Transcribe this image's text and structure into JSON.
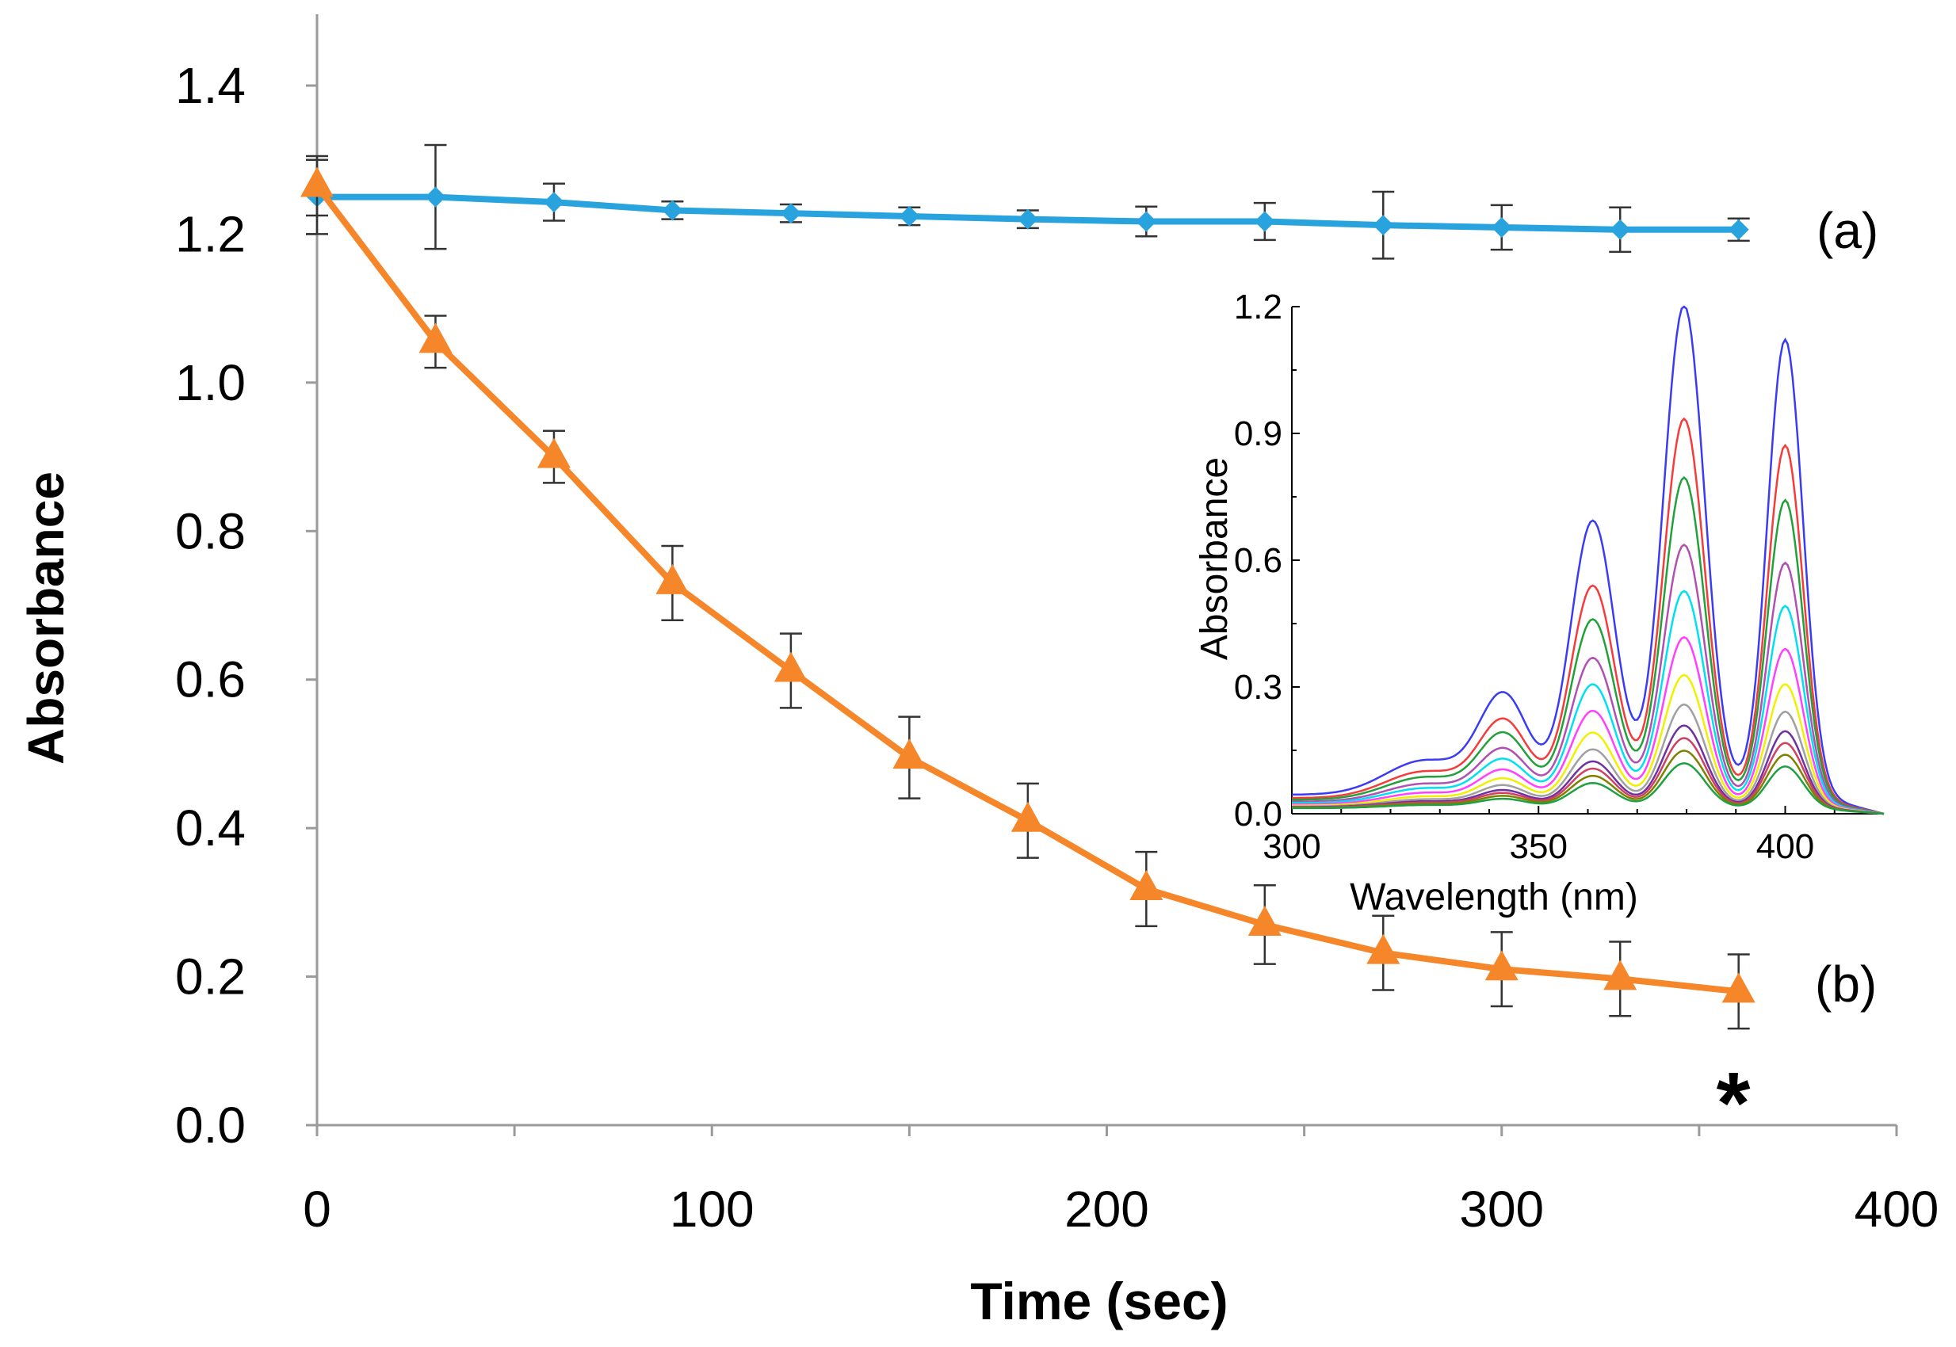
{
  "chart_data": [
    {
      "type": "line",
      "xlabel": "Time (sec)",
      "ylabel": "Absorbance",
      "xlim": [
        0,
        400
      ],
      "ylim": [
        0,
        1.4
      ],
      "x_ticks": [
        "0",
        "100",
        "200",
        "300",
        "400"
      ],
      "y_ticks": [
        "0.0",
        "0.2",
        "0.4",
        "0.6",
        "0.8",
        "1.0",
        "1.2",
        "1.4"
      ],
      "x": [
        0,
        30,
        60,
        90,
        120,
        150,
        180,
        210,
        240,
        270,
        300,
        330,
        360
      ],
      "series": [
        {
          "label": "(a)",
          "color": "#29a3dd",
          "marker": "diamond",
          "values": [
            1.25,
            1.25,
            1.243,
            1.232,
            1.228,
            1.224,
            1.22,
            1.217,
            1.217,
            1.212,
            1.209,
            1.206,
            1.206
          ],
          "errors": [
            0.05,
            0.07,
            0.025,
            0.012,
            0.012,
            0.012,
            0.012,
            0.02,
            0.025,
            0.045,
            0.03,
            0.03,
            0.015
          ]
        },
        {
          "label": "(b)",
          "color": "#f5862a",
          "marker": "triangle",
          "values": [
            1.265,
            1.055,
            0.9,
            0.73,
            0.612,
            0.495,
            0.41,
            0.318,
            0.27,
            0.232,
            0.21,
            0.197,
            0.18
          ],
          "errors": [
            0.04,
            0.035,
            0.035,
            0.05,
            0.05,
            0.055,
            0.05,
            0.05,
            0.053,
            0.05,
            0.05,
            0.05,
            0.05
          ]
        }
      ],
      "annotation": "*",
      "grid": false
    },
    {
      "type": "line",
      "role": "inset",
      "xlabel": "Wavelength (nm)",
      "ylabel": "Absorbance",
      "xlim": [
        300,
        420
      ],
      "ylim": [
        0,
        1.2
      ],
      "x_ticks": [
        "300",
        "350",
        "400"
      ],
      "y_ticks": [
        "0.0",
        "0.3",
        "0.6",
        "0.9",
        "1.2"
      ],
      "curve_colors": [
        "#3b3bf5",
        "#f53b3b",
        "#22a03a",
        "#b050b0",
        "#00e0f0",
        "#ff40ff",
        "#f0f000",
        "#a0a0a0",
        "#7030a0",
        "#d04060",
        "#808000",
        "#20a040"
      ],
      "peak_heights": [
        1.2,
        0.93,
        0.79,
        0.63,
        0.52,
        0.41,
        0.32,
        0.25,
        0.2,
        0.17,
        0.14,
        0.11
      ]
    }
  ]
}
